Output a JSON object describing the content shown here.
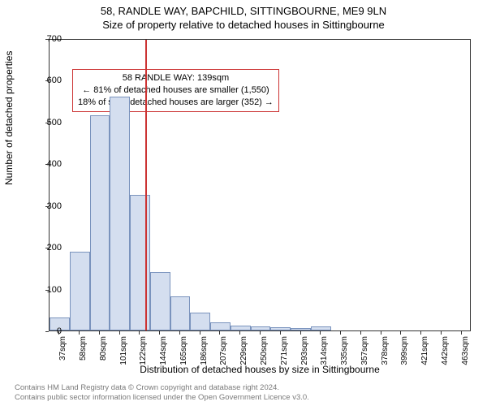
{
  "title_main": "58, RANDLE WAY, BAPCHILD, SITTINGBOURNE, ME9 9LN",
  "title_sub": "Size of property relative to detached houses in Sittingbourne",
  "y_axis_label": "Number of detached properties",
  "x_axis_label": "Distribution of detached houses by size in Sittingbourne",
  "chart": {
    "type": "histogram",
    "ylim": [
      0,
      700
    ],
    "ytick_step": 100,
    "x_categories": [
      "37sqm",
      "58sqm",
      "80sqm",
      "101sqm",
      "122sqm",
      "144sqm",
      "165sqm",
      "186sqm",
      "207sqm",
      "229sqm",
      "250sqm",
      "271sqm",
      "293sqm",
      "314sqm",
      "335sqm",
      "357sqm",
      "378sqm",
      "399sqm",
      "421sqm",
      "442sqm",
      "463sqm"
    ],
    "values": [
      32,
      188,
      515,
      560,
      325,
      140,
      82,
      42,
      20,
      12,
      10,
      8,
      5,
      10,
      0,
      0,
      0,
      0,
      0,
      0,
      0
    ],
    "bar_fill": "#d4deef",
    "bar_stroke": "#7a93bd",
    "background": "#ffffff",
    "axis_color": "#333333",
    "marker": {
      "position_index": 4.76,
      "color": "#cc3333"
    }
  },
  "info_box": {
    "line1": "58 RANDLE WAY: 139sqm",
    "line2": "← 81% of detached houses are smaller (1,550)",
    "line3": "18% of semi-detached houses are larger (352) →",
    "border_color": "#cc3333"
  },
  "footer": {
    "line1": "Contains HM Land Registry data © Crown copyright and database right 2024.",
    "line2": "Contains public sector information licensed under the Open Government Licence v3.0."
  }
}
